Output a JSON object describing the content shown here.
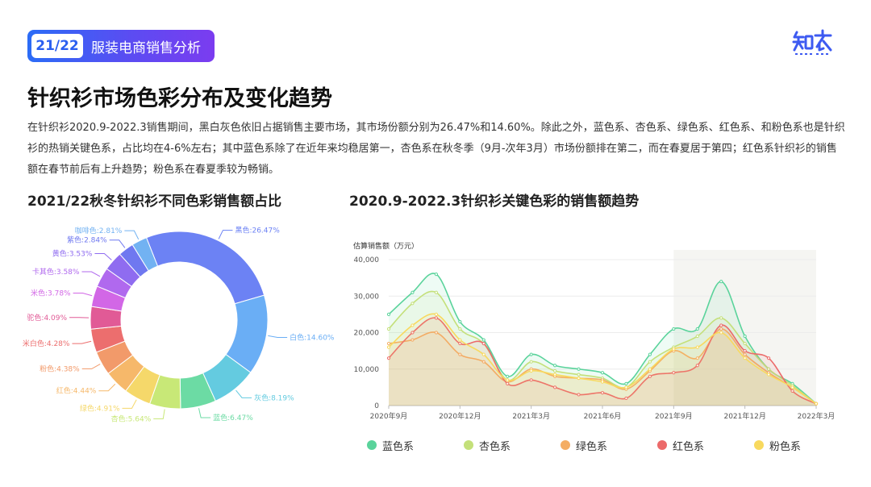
{
  "header": {
    "page_num": "21/22",
    "section_title": "服装电商销售分析"
  },
  "title": "针织衫市场色彩分布及变化趋势",
  "paragraph": "在针织衫2020.9-2022.3销售期间，黑白灰色依旧占据销售主要市场，其市场份额分别为26.47%和14.60%。除此之外，蓝色系、杏色系、绿色系、红色系、和粉色系也是针织衫的热销关键色系，占比均在4-6%左右；其中蓝色系除了在近年来均稳居第一，杏色系在秋冬季（9月-次年3月）市场份额排在第二，而在春夏居于第四；红色系针织衫的销售额在春节前后有上升趋势；粉色系在春夏季较为畅销。",
  "logo_colors": {
    "primary": "#3d5af1"
  },
  "chart_data": [
    {
      "type": "pie",
      "title": "2021/22秋冬针织衫不同色彩销售额占比",
      "slices": [
        {
          "label": "黑色:26.47%",
          "value": 26.47,
          "color": "#6c82f4"
        },
        {
          "label": "白色:14.60%",
          "value": 14.6,
          "color": "#6aaef5"
        },
        {
          "label": "灰色:8.19%",
          "value": 8.19,
          "color": "#64cbe0"
        },
        {
          "label": "蓝色:6.47%",
          "value": 6.47,
          "color": "#6cdba4"
        },
        {
          "label": "杏色:5.64%",
          "value": 5.64,
          "color": "#c8e877"
        },
        {
          "label": "绿色:4.91%",
          "value": 4.91,
          "color": "#f5d86a"
        },
        {
          "label": "红色:4.44%",
          "value": 4.44,
          "color": "#f6b86a"
        },
        {
          "label": "粉色:4.38%",
          "value": 4.38,
          "color": "#f29a6a"
        },
        {
          "label": "米白色:4.28%",
          "value": 4.28,
          "color": "#ec6e6e"
        },
        {
          "label": "驼色:4.09%",
          "value": 4.09,
          "color": "#e15a96"
        },
        {
          "label": "米色:3.78%",
          "value": 3.78,
          "color": "#d267e6"
        },
        {
          "label": "卡其色:3.58%",
          "value": 3.58,
          "color": "#b069ee"
        },
        {
          "label": "黄色:3.53%",
          "value": 3.53,
          "color": "#8f6cf0"
        },
        {
          "label": "紫色:2.84%",
          "value": 2.84,
          "color": "#6f78f0"
        },
        {
          "label": "咖啡色:2.81%",
          "value": 2.81,
          "color": "#72b2f2"
        }
      ]
    },
    {
      "type": "line",
      "title": "2020.9-2022.3针织衫关键色彩的销售额趋势",
      "ylabel": "估算销售额（万元）",
      "ylim": [
        0,
        40000
      ],
      "yticks": [
        "0",
        "10,000",
        "20,000",
        "30,000",
        "40,000"
      ],
      "x_tick_labels": [
        "2020年9月",
        "2020年12月",
        "2021年3月",
        "2021年6月",
        "2021年9月",
        "2021年12月",
        "2022年3月"
      ],
      "x_tick_positions": [
        0,
        3,
        6,
        9,
        12,
        15,
        18
      ],
      "highlight_range": [
        12,
        18
      ],
      "series": [
        {
          "name": "蓝色系",
          "color": "#5ad39b",
          "values": [
            25000,
            31000,
            36000,
            23000,
            18000,
            8000,
            14000,
            11000,
            10000,
            9000,
            6000,
            14000,
            21000,
            21000,
            34000,
            19000,
            10000,
            6000,
            500
          ]
        },
        {
          "name": "杏色系",
          "color": "#c4e07a",
          "values": [
            21000,
            28000,
            31000,
            21000,
            17000,
            7000,
            12000,
            9500,
            8500,
            7500,
            5000,
            12000,
            16000,
            19000,
            24000,
            17000,
            10000,
            5500,
            500
          ]
        },
        {
          "name": "绿色系",
          "color": "#f4ad64",
          "values": [
            17000,
            18000,
            20000,
            14000,
            12000,
            6500,
            10000,
            8000,
            7500,
            7000,
            4500,
            9500,
            15000,
            13000,
            21000,
            14000,
            9000,
            5000,
            500
          ]
        },
        {
          "name": "红色系",
          "color": "#ec6a6a",
          "values": [
            13000,
            20000,
            24000,
            17000,
            17000,
            6000,
            7000,
            5000,
            3000,
            3500,
            2000,
            8000,
            9000,
            11000,
            22000,
            15000,
            13000,
            4000,
            500
          ]
        },
        {
          "name": "粉色系",
          "color": "#f8d95e",
          "values": [
            16000,
            22000,
            25000,
            18000,
            14000,
            7000,
            9500,
            8500,
            7500,
            6500,
            5000,
            10000,
            15500,
            16000,
            20000,
            13000,
            8500,
            5000,
            500
          ]
        }
      ]
    }
  ]
}
